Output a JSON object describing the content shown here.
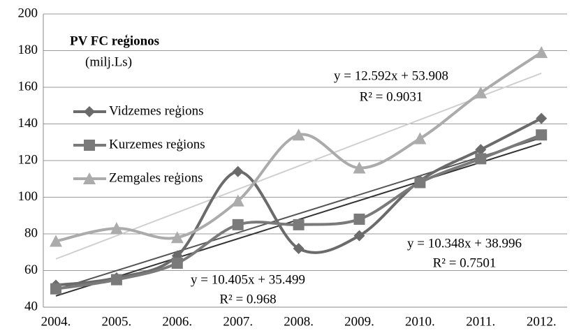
{
  "chart_data": {
    "type": "line",
    "title": "PV FC reģionos",
    "subtitle": "(milj.Ls)",
    "categories": [
      "2004.",
      "2005.",
      "2006.",
      "2007.",
      "2008.",
      "2009.",
      "2010.",
      "2011.",
      "2012."
    ],
    "series": [
      {
        "name": "Vidzemes reģions",
        "color": "#6b6b6b",
        "marker": "diamond",
        "values": [
          52,
          56,
          68,
          114,
          72,
          79,
          109,
          126,
          143
        ],
        "trendline": {
          "color": "#555555",
          "equation": "y = 10.348x + 38.996",
          "r_squared": "R² = 0.7501"
        }
      },
      {
        "name": "Kurzemes  reģions",
        "color": "#7a7a7a",
        "marker": "square",
        "values": [
          50,
          55,
          64,
          85,
          85,
          88,
          108,
          121,
          134
        ],
        "trendline": {
          "color": "#333333",
          "equation": "y = 10.405x + 35.499",
          "r_squared": "R² = 0.968"
        }
      },
      {
        "name": "Zemgales reģions",
        "color": "#ababab",
        "marker": "triangle",
        "values": [
          76,
          83,
          78,
          98,
          134,
          116,
          132,
          157,
          179
        ],
        "trendline": {
          "color": "#cfcfcf",
          "equation": "y = 12.592x + 53.908",
          "r_squared": "R² = 0.9031"
        }
      }
    ],
    "ylim": [
      40,
      200
    ],
    "yticks": [
      40,
      60,
      80,
      100,
      120,
      140,
      160,
      180,
      200
    ],
    "grid": true
  }
}
